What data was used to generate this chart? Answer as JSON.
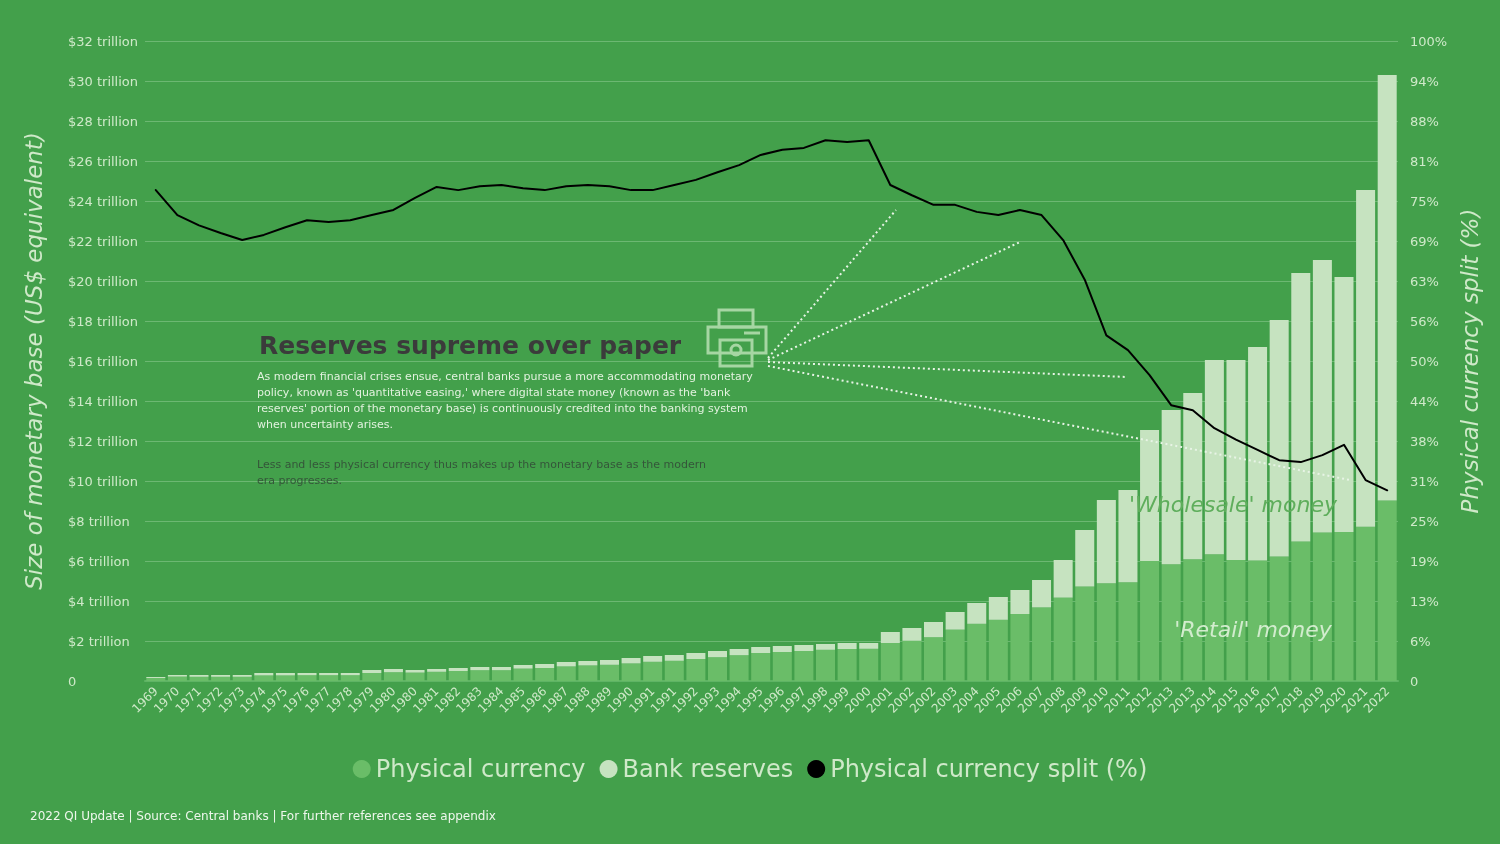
{
  "chart_data": {
    "type": "bar",
    "stacked": true,
    "title": "Reserves supreme over paper",
    "annotations": [
      "As modern financial crises ensue, central banks pursue a more accommodating monetary policy, known as 'quantitative easing,' where digital state money (known as the 'bank reserves' portion of the monetary base) is continuously credited into the banking system when uncertainty arises.",
      "Less and less physical currency thus makes up the monetary base as the modern era progresses.",
      "2022 QI Update | Source: Central banks | For further references see appendix",
      "'Wholesale' money",
      "'Retail' money"
    ],
    "ylabel": "Size of monetary base (US$ equivalent)",
    "y2label": "Physical currency split (%)",
    "categories": [
      "1969",
      "1970",
      "1971",
      "1972",
      "1973",
      "1974",
      "1975",
      "1976",
      "1977",
      "1978",
      "1979",
      "1980",
      "1980",
      "1981",
      "1982",
      "1983",
      "1984",
      "1985",
      "1986",
      "1987",
      "1988",
      "1989",
      "1990",
      "1991",
      "1991",
      "1992",
      "1993",
      "1994",
      "1995",
      "1996",
      "1997",
      "1998",
      "1999",
      "2000",
      "2001",
      "2002",
      "2002",
      "2003",
      "2004",
      "2005",
      "2006",
      "2007",
      "2008",
      "2009",
      "2010",
      "2011",
      "2012",
      "2013",
      "2013",
      "2014",
      "2015",
      "2016",
      "2017",
      "2018",
      "2019",
      "2020",
      "2021",
      "2022"
    ],
    "series": [
      {
        "name": "Physical currency",
        "color": "#6abd68",
        "values": [
          0.15,
          0.22,
          0.21,
          0.21,
          0.21,
          0.28,
          0.28,
          0.29,
          0.29,
          0.29,
          0.4,
          0.44,
          0.42,
          0.46,
          0.5,
          0.54,
          0.54,
          0.62,
          0.65,
          0.73,
          0.78,
          0.81,
          0.88,
          0.96,
          1.01,
          1.1,
          1.19,
          1.29,
          1.4,
          1.45,
          1.5,
          1.56,
          1.6,
          1.61,
          1.9,
          2.01,
          2.19,
          2.57,
          2.86,
          3.06,
          3.35,
          3.68,
          4.17,
          4.73,
          4.89,
          4.94,
          6.0,
          5.84,
          6.09,
          6.34,
          6.05,
          6.03,
          6.23,
          6.98,
          7.43,
          7.45,
          7.71,
          9.03
        ]
      },
      {
        "name": "Bank reserves",
        "color": "#c6e3c0",
        "values": [
          0.05,
          0.08,
          0.09,
          0.09,
          0.09,
          0.12,
          0.12,
          0.11,
          0.11,
          0.11,
          0.15,
          0.16,
          0.13,
          0.14,
          0.15,
          0.16,
          0.16,
          0.18,
          0.2,
          0.22,
          0.22,
          0.24,
          0.27,
          0.29,
          0.29,
          0.3,
          0.31,
          0.31,
          0.3,
          0.3,
          0.3,
          0.29,
          0.3,
          0.29,
          0.55,
          0.64,
          0.76,
          0.88,
          1.04,
          1.14,
          1.2,
          1.37,
          1.88,
          2.82,
          4.16,
          4.61,
          6.55,
          7.71,
          8.31,
          9.71,
          10.0,
          10.67,
          11.82,
          13.42,
          13.62,
          12.75,
          16.84,
          21.27
        ]
      },
      {
        "name": "Physical currency split (%)",
        "color": "#000000",
        "type": "line",
        "axis": "y2",
        "values": [
          76.7,
          72.8,
          71.2,
          70,
          68.9,
          69.7,
          70.9,
          72,
          71.7,
          72,
          72.8,
          73.6,
          75.5,
          77.2,
          76.7,
          77.3,
          77.5,
          77,
          76.7,
          77.3,
          77.5,
          77.3,
          76.7,
          76.7,
          77.5,
          78.3,
          79.5,
          80.6,
          82.2,
          83,
          83.3,
          84.5,
          84.2,
          84.5,
          77.5,
          75.9,
          74.4,
          74.4,
          73.3,
          72.8,
          73.6,
          72.8,
          68.9,
          62.7,
          54,
          51.7,
          47.8,
          43.1,
          42.3,
          39.5,
          37.7,
          36.1,
          34.5,
          34.2,
          35.3,
          36.9,
          31.4,
          29.8
        ]
      }
    ],
    "ylim": [
      0,
      32
    ],
    "yticks": [
      0,
      {
        "value": 2,
        "label": "$2 trillion"
      },
      {
        "value": 4,
        "label": "$4 trillion"
      },
      {
        "value": 6,
        "label": "$6 trillion"
      },
      {
        "value": 8,
        "label": "$8 trillion"
      },
      {
        "value": 10,
        "label": "$10 trillion"
      },
      {
        "value": 12,
        "label": "$12 trillion"
      },
      {
        "value": 14,
        "label": "$14 trillion"
      },
      {
        "value": 16,
        "label": "$16 trillion"
      },
      {
        "value": 18,
        "label": "$18 trillion"
      },
      {
        "value": 20,
        "label": "$20 trillion"
      },
      {
        "value": 22,
        "label": "$22 trillion"
      },
      {
        "value": 24,
        "label": "$24 trillion"
      },
      {
        "value": 26,
        "label": "$26 trillion"
      },
      {
        "value": 28,
        "label": "$28 trillion"
      },
      {
        "value": 30,
        "label": "$30 trillion"
      },
      {
        "value": 32,
        "label": "$32 trillion"
      }
    ],
    "y2lim": [
      0,
      100
    ],
    "y2ticks": [
      0,
      {
        "value": 6.25,
        "label": "6%"
      },
      {
        "value": 12.5,
        "label": "13%"
      },
      {
        "value": 18.75,
        "label": "19%"
      },
      {
        "value": 25,
        "label": "25%"
      },
      {
        "value": 31.25,
        "label": "31%"
      },
      {
        "value": 37.5,
        "label": "38%"
      },
      {
        "value": 43.75,
        "label": "44%"
      },
      {
        "value": 50,
        "label": "50%"
      },
      {
        "value": 56.25,
        "label": "56%"
      },
      {
        "value": 62.5,
        "label": "63%"
      },
      {
        "value": 68.75,
        "label": "69%"
      },
      {
        "value": 75,
        "label": "75%"
      },
      {
        "value": 81.25,
        "label": "81%"
      },
      {
        "value": 87.5,
        "label": "88%"
      },
      {
        "value": 93.75,
        "label": "94%"
      },
      {
        "value": 100,
        "label": "100%"
      }
    ],
    "grid": "y",
    "legend": "bottom",
    "marker": "none",
    "line_style": "solid"
  }
}
